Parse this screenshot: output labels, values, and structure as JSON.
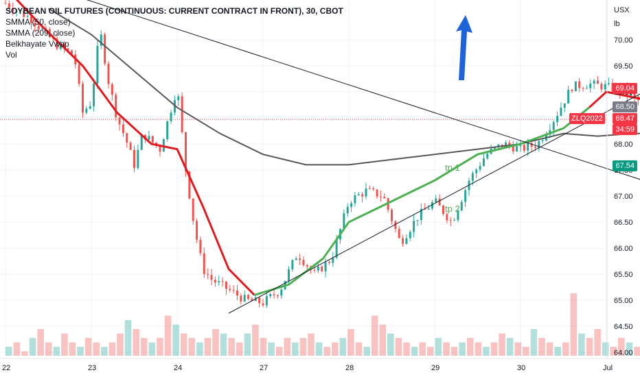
{
  "legend": {
    "title": "SOYBEAN OIL FUTURES (CONTINUOUS: CURRENT CONTRACT IN FRONT), 30, CBOT",
    "smma50": "SMMA (50, close)",
    "smma209": "SMMA (209, close)",
    "vwap": "Belkhayate Vwap",
    "vol": "Vol"
  },
  "axis": {
    "unit_top": "USX",
    "unit_bottom": "lb",
    "y_ticks": [
      "70.00",
      "69.50",
      "69.00",
      "68.50",
      "68.00",
      "67.50",
      "67.00",
      "66.50",
      "66.00",
      "65.50",
      "65.00",
      "64.50",
      "64.00"
    ],
    "x_ticks": [
      "22",
      "23",
      "24",
      "27",
      "28",
      "29",
      "30",
      "Jul"
    ]
  },
  "price_labels": {
    "stop": "69.04",
    "mid": "68.50",
    "last": "68.47",
    "countdown": "34:59",
    "target": "67.54",
    "ticker": "ZLQ2022"
  },
  "annotations": {
    "tp1": "tp 1",
    "tp2": "tp 2"
  },
  "colors": {
    "up": "#26a69a",
    "down": "#ef5350",
    "smma50_down": "#e0191e",
    "smma50_up": "#4caf50",
    "smma209": "#555555",
    "arrow": "#1e63d8",
    "last_price": "#f23645",
    "target": "#089981"
  },
  "chart_data": {
    "type": "candlestick",
    "title": "SOYBEAN OIL FUTURES (CONTINUOUS: CURRENT CONTRACT IN FRONT), 30, CBOT",
    "ylim": [
      63.9,
      70.9
    ],
    "y_unit": "USX/lb",
    "sessions": [
      "22",
      "23",
      "24",
      "27",
      "28",
      "29",
      "30",
      "Jul"
    ],
    "close_path": [
      [
        22.0,
        70.7
      ],
      [
        22.3,
        70.4
      ],
      [
        22.6,
        69.9
      ],
      [
        22.8,
        69.7
      ],
      [
        22.9,
        68.6
      ],
      [
        23.0,
        68.8
      ],
      [
        23.1,
        70.2
      ],
      [
        23.2,
        69.2
      ],
      [
        23.3,
        68.5
      ],
      [
        23.4,
        68.1
      ],
      [
        23.5,
        67.6
      ],
      [
        23.6,
        68.2
      ],
      [
        23.8,
        67.9
      ],
      [
        24.0,
        69.1
      ],
      [
        24.1,
        67.5
      ],
      [
        24.2,
        66.4
      ],
      [
        24.3,
        65.6
      ],
      [
        24.4,
        65.4
      ],
      [
        24.6,
        65.2
      ],
      [
        24.8,
        65.0
      ],
      [
        25.0,
        64.95
      ],
      [
        25.2,
        65.2
      ],
      [
        25.4,
        65.9
      ],
      [
        25.6,
        65.5
      ],
      [
        25.8,
        65.8
      ],
      [
        26.0,
        66.9
      ],
      [
        26.2,
        67.1
      ],
      [
        26.4,
        67.0
      ],
      [
        26.6,
        66.1
      ],
      [
        26.8,
        66.6
      ],
      [
        27.0,
        66.9
      ],
      [
        27.2,
        66.5
      ],
      [
        27.4,
        67.3
      ],
      [
        27.6,
        67.8
      ],
      [
        27.8,
        68.0
      ],
      [
        28.0,
        67.9
      ],
      [
        28.2,
        68.0
      ],
      [
        28.4,
        68.5
      ],
      [
        28.6,
        69.1
      ],
      [
        28.8,
        69.15
      ],
      [
        29.0,
        69.1
      ],
      [
        29.2,
        69.0
      ],
      [
        29.4,
        68.8
      ],
      [
        29.5,
        69.2
      ],
      [
        29.6,
        68.7
      ],
      [
        29.7,
        68.1
      ],
      [
        29.8,
        68.0
      ],
      [
        29.9,
        68.2
      ],
      [
        30.0,
        68.3
      ],
      [
        30.1,
        68.5
      ]
    ],
    "smma50": [
      [
        22.0,
        71.0
      ],
      [
        22.4,
        70.3
      ],
      [
        22.9,
        69.5
      ],
      [
        23.3,
        68.6
      ],
      [
        23.7,
        68.0
      ],
      [
        24.0,
        67.9
      ],
      [
        24.3,
        66.8
      ],
      [
        24.6,
        65.6
      ],
      [
        24.9,
        65.1
      ],
      [
        25.3,
        65.3
      ],
      [
        25.7,
        65.8
      ],
      [
        26.0,
        66.5
      ],
      [
        26.5,
        66.9
      ],
      [
        27.0,
        67.3
      ],
      [
        27.5,
        67.8
      ],
      [
        28.0,
        68.0
      ],
      [
        28.5,
        68.3
      ],
      [
        28.8,
        68.7
      ],
      [
        29.0,
        69.0
      ],
      [
        29.3,
        68.9
      ],
      [
        29.6,
        68.8
      ]
    ],
    "smma209": [
      [
        22.5,
        70.6
      ],
      [
        23.0,
        70.1
      ],
      [
        23.5,
        69.4
      ],
      [
        24.0,
        68.7
      ],
      [
        24.5,
        68.2
      ],
      [
        25.0,
        67.8
      ],
      [
        25.5,
        67.6
      ],
      [
        26.0,
        67.6
      ],
      [
        26.5,
        67.7
      ],
      [
        27.0,
        67.8
      ],
      [
        27.5,
        67.9
      ],
      [
        28.0,
        68.0
      ],
      [
        28.5,
        68.2
      ],
      [
        28.9,
        68.15
      ],
      [
        29.3,
        68.2
      ],
      [
        29.6,
        68.2
      ]
    ],
    "trendlines": [
      {
        "name": "rising",
        "from": [
          24.6,
          64.75
        ],
        "to": [
          31.6,
          70.9
        ]
      },
      {
        "name": "falling",
        "from": [
          22.7,
          70.9
        ],
        "to": [
          32.7,
          65.55
        ]
      }
    ],
    "position": {
      "entry": 68.47,
      "stop": 69.04,
      "target": 67.54,
      "x_range": [
        29.0,
        30.1
      ]
    },
    "volume": [
      2,
      3,
      1,
      4,
      6,
      3,
      2,
      5,
      3,
      2,
      4,
      3,
      2,
      3,
      5,
      8,
      6,
      4,
      3,
      4,
      9,
      7,
      5,
      4,
      3,
      4,
      6,
      5,
      4,
      3,
      5,
      7,
      4,
      3,
      2,
      4,
      3,
      4,
      5,
      3,
      2,
      3,
      4,
      6,
      3,
      2,
      9,
      7,
      5,
      4,
      3,
      2,
      3,
      2,
      4,
      3,
      2,
      3,
      4,
      3,
      2,
      3,
      5,
      4,
      3,
      2,
      6,
      4,
      3,
      2,
      3,
      14,
      5,
      4,
      6,
      3,
      2,
      4,
      3,
      2,
      1,
      1
    ]
  }
}
